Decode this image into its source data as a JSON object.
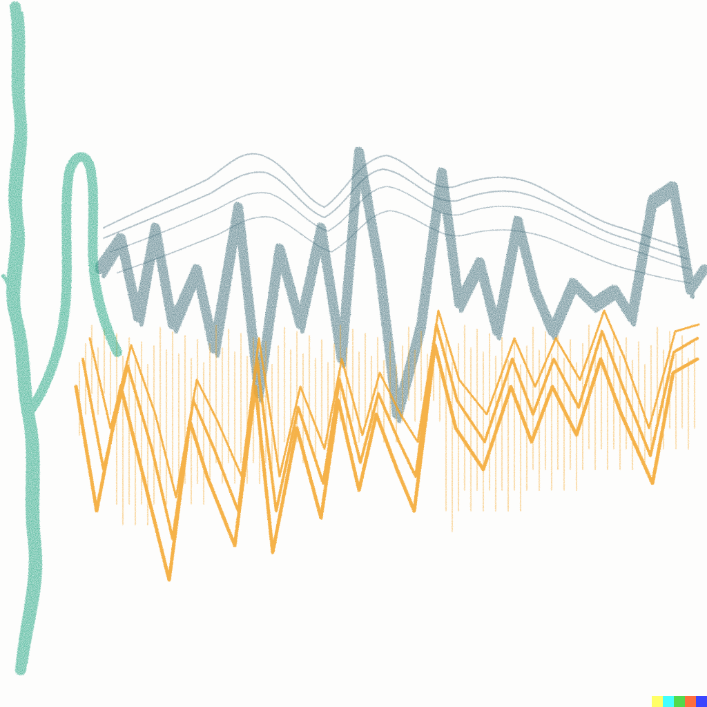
{
  "artwork": {
    "background_color": "#fdfdfc",
    "strokes": [
      {
        "name": "green-vertical-squiggle",
        "color": "#1aa37f"
      },
      {
        "name": "slate-zigzag-wave",
        "color": "#3f6e7a"
      },
      {
        "name": "light-grey-echo-lines",
        "color": "#8aa1ac"
      },
      {
        "name": "orange-downward-hatching",
        "color": "#f4a62a"
      }
    ]
  },
  "color_strip": {
    "colors": [
      "#ffff66",
      "#42ffff",
      "#51da4c",
      "#ff6e3c",
      "#3c46ff"
    ]
  }
}
